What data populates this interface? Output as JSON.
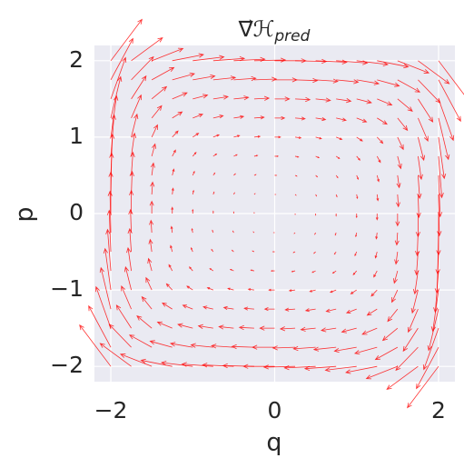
{
  "chart_data": {
    "type": "quiver",
    "title": "∇⃗ℋ",
    "title_subscript": "pred",
    "x_label": "q",
    "y_label": "p",
    "x": [
      -2,
      -1.75,
      -1.5,
      -1.25,
      -1,
      -0.75,
      -0.5,
      -0.25,
      0,
      0.25,
      0.5,
      0.75,
      1,
      1.25,
      1.5,
      1.75,
      2
    ],
    "y": [
      -2,
      -1.75,
      -1.5,
      -1.25,
      -1,
      -0.75,
      -0.5,
      -0.25,
      0,
      0.25,
      0.5,
      0.75,
      1,
      1.25,
      1.5,
      1.75,
      2
    ],
    "u": [
      [
        -3.8,
        -3.8,
        -3.8,
        -3.8,
        -3.8,
        -3.8,
        -3.8,
        -3.8,
        -3.8,
        -3.8,
        -3.8,
        -3.8,
        -3.8,
        -3.8,
        -3.8,
        -3.8,
        -3.8
      ],
      [
        -2.7,
        -2.7,
        -2.7,
        -2.7,
        -2.7,
        -2.7,
        -2.7,
        -2.7,
        -2.7,
        -2.7,
        -2.7,
        -2.7,
        -2.7,
        -2.7,
        -2.7,
        -2.7,
        -2.7
      ],
      [
        -1.8,
        -1.8,
        -1.8,
        -1.8,
        -1.8,
        -1.8,
        -1.8,
        -1.8,
        -1.8,
        -1.8,
        -1.8,
        -1.8,
        -1.8,
        -1.8,
        -1.8,
        -1.8,
        -1.8
      ],
      [
        -1.2,
        -1.2,
        -1.2,
        -1.2,
        -1.2,
        -1.2,
        -1.2,
        -1.2,
        -1.2,
        -1.2,
        -1.2,
        -1.2,
        -1.2,
        -1.2,
        -1.2,
        -1.2,
        -1.2
      ],
      [
        -0.7,
        -0.7,
        -0.7,
        -0.7,
        -0.7,
        -0.7,
        -0.7,
        -0.7,
        -0.7,
        -0.7,
        -0.7,
        -0.7,
        -0.7,
        -0.7,
        -0.7,
        -0.7,
        -0.7
      ],
      [
        -0.4,
        -0.4,
        -0.4,
        -0.4,
        -0.4,
        -0.4,
        -0.4,
        -0.4,
        -0.4,
        -0.4,
        -0.4,
        -0.4,
        -0.4,
        -0.4,
        -0.4,
        -0.4,
        -0.4
      ],
      [
        -0.2,
        -0.2,
        -0.2,
        -0.2,
        -0.2,
        -0.2,
        -0.2,
        -0.2,
        -0.2,
        -0.2,
        -0.2,
        -0.2,
        -0.2,
        -0.2,
        -0.2,
        -0.2,
        -0.2
      ],
      [
        -0.1,
        -0.1,
        -0.1,
        -0.1,
        -0.1,
        -0.1,
        -0.1,
        -0.1,
        -0.1,
        -0.1,
        -0.1,
        -0.1,
        -0.1,
        -0.1,
        -0.1,
        -0.1,
        -0.1
      ],
      [
        0,
        0,
        0,
        0,
        0,
        0,
        0,
        0,
        0,
        0,
        0,
        0,
        0,
        0,
        0,
        0,
        0
      ],
      [
        0.1,
        0.1,
        0.1,
        0.1,
        0.1,
        0.1,
        0.1,
        0.1,
        0.1,
        0.1,
        0.1,
        0.1,
        0.1,
        0.1,
        0.1,
        0.1,
        0.1
      ],
      [
        0.2,
        0.2,
        0.2,
        0.2,
        0.2,
        0.2,
        0.2,
        0.2,
        0.2,
        0.2,
        0.2,
        0.2,
        0.2,
        0.2,
        0.2,
        0.2,
        0.2
      ],
      [
        0.4,
        0.4,
        0.4,
        0.4,
        0.4,
        0.4,
        0.4,
        0.4,
        0.4,
        0.4,
        0.4,
        0.4,
        0.4,
        0.4,
        0.4,
        0.4,
        0.4
      ],
      [
        0.7,
        0.7,
        0.7,
        0.7,
        0.7,
        0.7,
        0.7,
        0.7,
        0.7,
        0.7,
        0.7,
        0.7,
        0.7,
        0.7,
        0.7,
        0.7,
        0.7
      ],
      [
        1.2,
        1.2,
        1.2,
        1.2,
        1.2,
        1.2,
        1.2,
        1.2,
        1.2,
        1.2,
        1.2,
        1.2,
        1.2,
        1.2,
        1.2,
        1.2,
        1.2
      ],
      [
        1.8,
        1.8,
        1.8,
        1.8,
        1.8,
        1.8,
        1.8,
        1.8,
        1.8,
        1.8,
        1.8,
        1.8,
        1.8,
        1.8,
        1.8,
        1.8,
        1.8
      ],
      [
        2.7,
        2.7,
        2.7,
        2.7,
        2.7,
        2.7,
        2.7,
        2.7,
        2.7,
        2.7,
        2.7,
        2.7,
        2.7,
        2.7,
        2.7,
        2.7,
        2.7
      ],
      [
        3.8,
        3.8,
        3.8,
        3.8,
        3.8,
        3.8,
        3.8,
        3.8,
        3.8,
        3.8,
        3.8,
        3.8,
        3.8,
        3.8,
        3.8,
        3.8,
        3.8
      ]
    ],
    "v": [
      [
        5.4,
        3.0,
        1.6,
        0.8,
        0.5,
        0.3,
        0.2,
        0.1,
        0,
        -0.1,
        -0.2,
        -0.3,
        -0.5,
        -0.8,
        -1.6,
        -3.0,
        -5.4
      ],
      [
        5.4,
        3.0,
        1.6,
        0.8,
        0.5,
        0.3,
        0.2,
        0.1,
        0,
        -0.1,
        -0.2,
        -0.3,
        -0.5,
        -0.8,
        -1.6,
        -3.0,
        -5.4
      ],
      [
        5.4,
        3.0,
        1.6,
        0.8,
        0.5,
        0.3,
        0.2,
        0.1,
        0,
        -0.1,
        -0.2,
        -0.3,
        -0.5,
        -0.8,
        -1.6,
        -3.0,
        -5.4
      ],
      [
        5.4,
        3.0,
        1.6,
        0.8,
        0.5,
        0.3,
        0.2,
        0.1,
        0,
        -0.1,
        -0.2,
        -0.3,
        -0.5,
        -0.8,
        -1.6,
        -3.0,
        -5.4
      ],
      [
        5.4,
        3.0,
        1.6,
        0.8,
        0.5,
        0.3,
        0.2,
        0.1,
        0,
        -0.1,
        -0.2,
        -0.3,
        -0.5,
        -0.8,
        -1.6,
        -3.0,
        -5.4
      ],
      [
        5.4,
        3.0,
        1.6,
        0.8,
        0.5,
        0.3,
        0.2,
        0.1,
        0,
        -0.1,
        -0.2,
        -0.3,
        -0.5,
        -0.8,
        -1.6,
        -3.0,
        -5.4
      ],
      [
        5.4,
        3.0,
        1.6,
        0.8,
        0.5,
        0.3,
        0.2,
        0.1,
        0,
        -0.1,
        -0.2,
        -0.3,
        -0.5,
        -0.8,
        -1.6,
        -3.0,
        -5.4
      ],
      [
        5.4,
        3.0,
        1.6,
        0.8,
        0.5,
        0.3,
        0.2,
        0.1,
        0,
        -0.1,
        -0.2,
        -0.3,
        -0.5,
        -0.8,
        -1.6,
        -3.0,
        -5.4
      ],
      [
        5.4,
        3.0,
        1.6,
        0.8,
        0.5,
        0.3,
        0.2,
        0.1,
        0,
        -0.1,
        -0.2,
        -0.3,
        -0.5,
        -0.8,
        -1.6,
        -3.0,
        -5.4
      ],
      [
        5.4,
        3.0,
        1.6,
        0.8,
        0.5,
        0.3,
        0.2,
        0.1,
        0,
        -0.1,
        -0.2,
        -0.3,
        -0.5,
        -0.8,
        -1.6,
        -3.0,
        -5.4
      ],
      [
        5.4,
        3.0,
        1.6,
        0.8,
        0.5,
        0.3,
        0.2,
        0.1,
        0,
        -0.1,
        -0.2,
        -0.3,
        -0.5,
        -0.8,
        -1.6,
        -3.0,
        -5.4
      ],
      [
        5.4,
        3.0,
        1.6,
        0.8,
        0.5,
        0.3,
        0.2,
        0.1,
        0,
        -0.1,
        -0.2,
        -0.3,
        -0.5,
        -0.8,
        -1.6,
        -3.0,
        -5.4
      ],
      [
        5.4,
        3.0,
        1.6,
        0.8,
        0.5,
        0.3,
        0.2,
        0.1,
        0,
        -0.1,
        -0.2,
        -0.3,
        -0.5,
        -0.8,
        -1.6,
        -3.0,
        -5.4
      ],
      [
        5.4,
        3.0,
        1.6,
        0.8,
        0.5,
        0.3,
        0.2,
        0.1,
        0,
        -0.1,
        -0.2,
        -0.3,
        -0.5,
        -0.8,
        -1.6,
        -3.0,
        -5.4
      ],
      [
        5.4,
        3.0,
        1.6,
        0.8,
        0.5,
        0.3,
        0.2,
        0.1,
        0,
        -0.1,
        -0.2,
        -0.3,
        -0.5,
        -0.8,
        -1.6,
        -3.0,
        -5.4
      ],
      [
        5.4,
        3.0,
        1.6,
        0.8,
        0.5,
        0.3,
        0.2,
        0.1,
        0,
        -0.1,
        -0.2,
        -0.3,
        -0.5,
        -0.8,
        -1.6,
        -3.0,
        -5.4
      ],
      [
        5.4,
        3.0,
        1.6,
        0.8,
        0.5,
        0.3,
        0.2,
        0.1,
        0,
        -0.1,
        -0.2,
        -0.3,
        -0.5,
        -0.8,
        -1.6,
        -3.0,
        -5.4
      ]
    ],
    "color": "#ff0000",
    "xlim": [
      -2.2,
      2.2
    ],
    "ylim": [
      -2.2,
      2.2
    ],
    "xticks": [
      {
        "value": -2,
        "label": "−2"
      },
      0,
      2
    ],
    "yticks": [
      {
        "value": -2,
        "label": "−2"
      },
      {
        "value": -1,
        "label": "−1"
      },
      0,
      1,
      2
    ],
    "grid": true
  }
}
